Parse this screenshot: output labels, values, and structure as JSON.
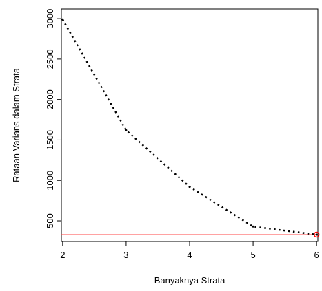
{
  "chart_data": {
    "type": "line",
    "title": "",
    "xlabel": "Banyaknya Strata",
    "ylabel": "Rataan Varians dalam Strata",
    "x": [
      2,
      3,
      4,
      5,
      6
    ],
    "series": [
      {
        "values": [
          2990,
          1620,
          920,
          430,
          330
        ],
        "color": "#000000",
        "line_style": "dotted"
      }
    ],
    "xticks": [
      "2",
      "3",
      "4",
      "5",
      "6"
    ],
    "yticks": [
      "500",
      "1000",
      "1500",
      "2000",
      "2500",
      "3000"
    ],
    "reference_line": {
      "y": 330,
      "color": "#ff4444"
    },
    "highlight_point": {
      "x": 6,
      "y": 330,
      "color": "#ff0000"
    },
    "xlim": [
      1.98,
      6.02
    ],
    "ylim": [
      245,
      3120
    ],
    "grid": false
  }
}
